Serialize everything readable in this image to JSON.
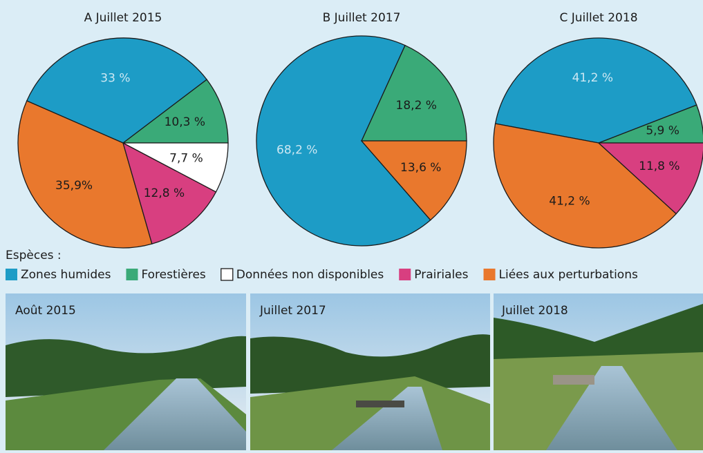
{
  "chart_data": [
    {
      "type": "pie",
      "title": "A Juillet 2015",
      "values": [
        10.3,
        33,
        35.9,
        12.8,
        7.7
      ],
      "value_labels": [
        "10,3 %",
        "33 %",
        "35,9%",
        "12,8 %",
        "7,7 %"
      ],
      "colors": [
        "#3aaa78",
        "#1d9cc6",
        "#e9782d",
        "#d83f80",
        "#ffffff"
      ]
    },
    {
      "type": "pie",
      "title": "B Juillet 2017",
      "values": [
        18.2,
        68.2,
        13.6
      ],
      "value_labels": [
        "18,2 %",
        "68,2 %",
        "13,6 %"
      ],
      "colors": [
        "#3aaa78",
        "#1d9cc6",
        "#e9782d"
      ]
    },
    {
      "type": "pie",
      "title": "C Juillet 2018",
      "values": [
        5.9,
        41.2,
        41.2,
        11.8
      ],
      "value_labels": [
        "5,9 %",
        "41,2 %",
        "41,2 %",
        "11,8 %"
      ],
      "colors": [
        "#3aaa78",
        "#1d9cc6",
        "#e9782d",
        "#d83f80"
      ]
    }
  ],
  "legend": {
    "title": "Espèces :",
    "items": [
      {
        "name": "Zones humides",
        "color": "#1d9cc6"
      },
      {
        "name": "Forestières",
        "color": "#3aaa78"
      },
      {
        "name": "Données non disponibles",
        "color": "#ffffff"
      },
      {
        "name": "Prairiales",
        "color": "#d83f80"
      },
      {
        "name": "Liées aux perturbations",
        "color": "#e9782d"
      }
    ]
  },
  "photos": [
    {
      "caption": "Août 2015"
    },
    {
      "caption": "Juillet 2017"
    },
    {
      "caption": "Juillet 2018"
    }
  ]
}
